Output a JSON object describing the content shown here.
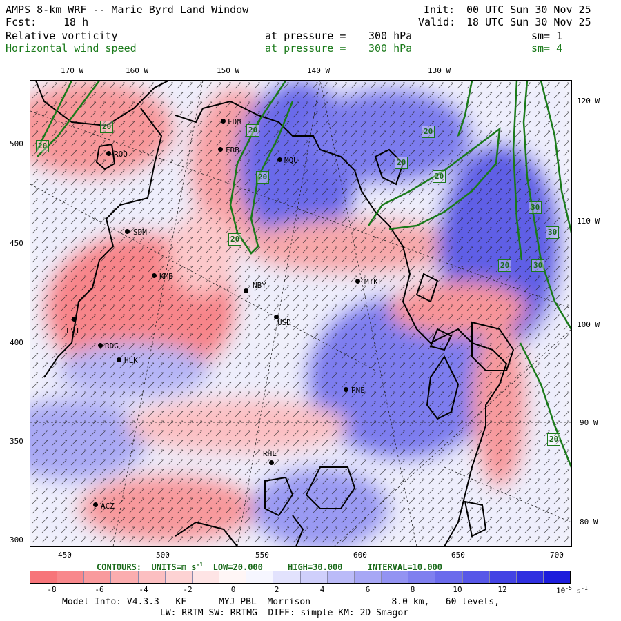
{
  "header": {
    "title_left": "AMPS 8-km WRF -- Marie Byrd Land Window",
    "init_label": "Init:",
    "init_value": "00 UTC Sun 30 Nov 25",
    "fcst_label": "Fcst:",
    "fcst_value": "18 h",
    "valid_label": "Valid:",
    "valid_value": "18 UTC Sun 30 Nov 25"
  },
  "fields": [
    {
      "name": "Relative vorticity",
      "level_label": "at pressure =",
      "level_value": "300 hPa",
      "sm": "sm= 1"
    },
    {
      "name": "Horizontal wind speed",
      "level_label": "at pressure =",
      "level_value": "300 hPa",
      "sm": "sm= 4"
    }
  ],
  "top_lon_labels": [
    "170 W",
    "160 W",
    "150 W",
    "140 W",
    "130 W"
  ],
  "right_lon_labels": [
    "120 W",
    "110 W",
    "100 W",
    "90 W",
    "80 W"
  ],
  "x_ticks": [
    "450",
    "500",
    "550",
    "600",
    "650",
    "700"
  ],
  "y_ticks": [
    "500",
    "450",
    "400",
    "350",
    "300"
  ],
  "stations": [
    {
      "id": "FDM"
    },
    {
      "id": "FRB"
    },
    {
      "id": "MQU"
    },
    {
      "id": "ROQ"
    },
    {
      "id": "SDM"
    },
    {
      "id": "KMB"
    },
    {
      "id": "NBY"
    },
    {
      "id": "MTKL"
    },
    {
      "id": "USD"
    },
    {
      "id": "LVT"
    },
    {
      "id": "RDG"
    },
    {
      "id": "HLK"
    },
    {
      "id": "PNE"
    },
    {
      "id": "RHL"
    },
    {
      "id": "ACZ"
    }
  ],
  "contour_labels": [
    "20",
    "20",
    "20",
    "20",
    "20",
    "20",
    "20",
    "20",
    "20",
    "30",
    "30",
    "30",
    "20",
    "20"
  ],
  "contour_info": {
    "contours_label": "CONTOURS:",
    "units_label": "UNITS=m s",
    "units_exp": "-1",
    "low_label": "LOW=",
    "low_value": "20.000",
    "high_label": "HIGH=",
    "high_value": "30.000",
    "interval_label": "INTERVAL=",
    "interval_value": "10.000"
  },
  "colorbar": {
    "labels": [
      "-8",
      "-6",
      "-4",
      "-2",
      "0",
      "2",
      "4",
      "6",
      "8",
      "10",
      "12"
    ],
    "unit_base": "10",
    "unit_exp": "-5",
    "unit_tail": "s",
    "unit_tail_exp": "-1",
    "colors": [
      "#f7757a",
      "#f8888c",
      "#f99a9d",
      "#fbadaf",
      "#fcbfc1",
      "#fdd2d3",
      "#fee4e5",
      "#fff6f6",
      "#f6f6ff",
      "#e2e2fd",
      "#cfcffb",
      "#bbbbf8",
      "#a7a7f5",
      "#9393f2",
      "#7f7fef",
      "#6b6bec",
      "#5757e8",
      "#4343e4",
      "#2f2fe0",
      "#1c1cdc"
    ]
  },
  "footer": {
    "line1_model": "Model Info: V4.3.3",
    "line1_kf": "KF",
    "line1_pbl": "MYJ PBL",
    "line1_mp": "Morrison",
    "line1_res": "8.0 km,",
    "line1_levels": "60 levels,",
    "line2": "LW: RRTM SW: RRTMG  DIFF: simple KM: 2D Smagor"
  }
}
